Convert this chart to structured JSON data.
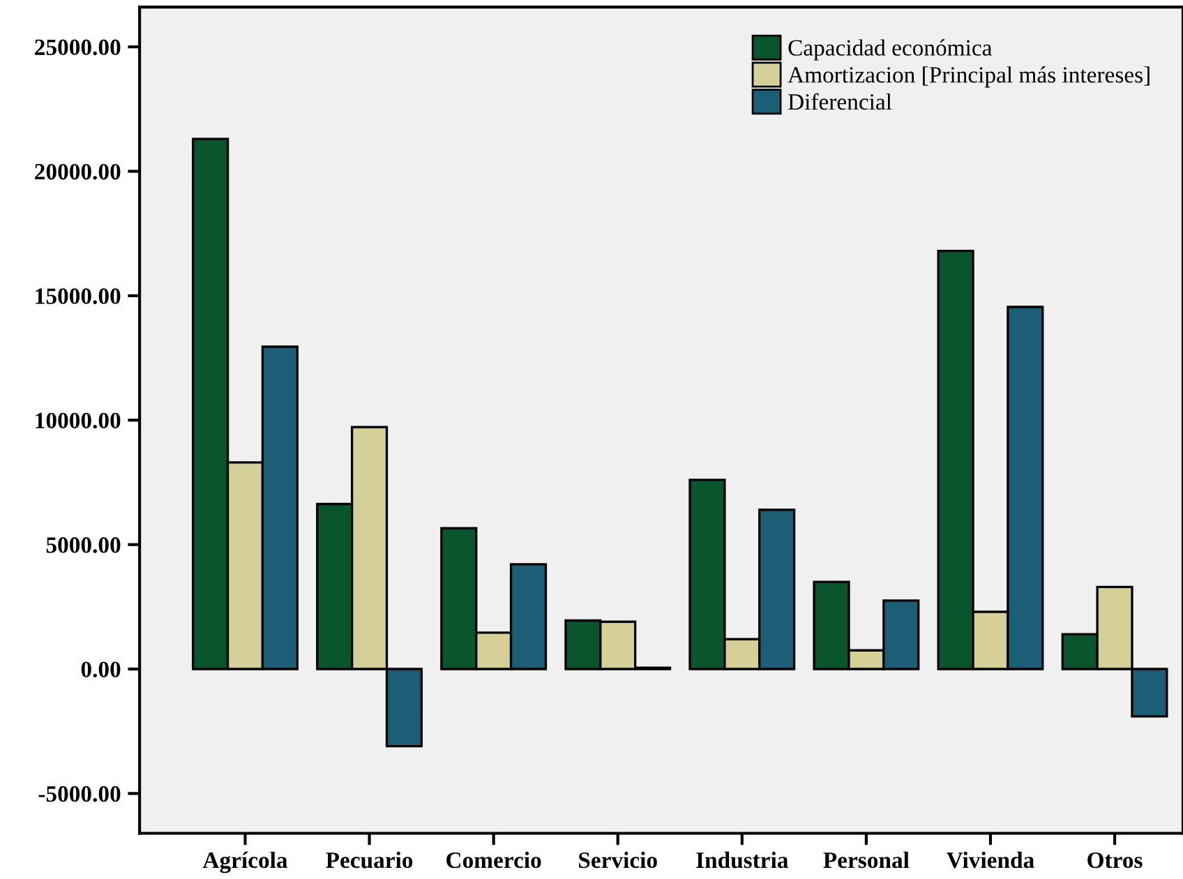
{
  "chart_data": {
    "type": "bar",
    "categories": [
      "Agrícola",
      "Pecuario",
      "Comercio",
      "Servicio",
      "Industria",
      "Personal",
      "Vivienda",
      "Otros"
    ],
    "series": [
      {
        "name": "Capacidad económica",
        "color": "#0a552d",
        "values": [
          21300,
          6630,
          5660,
          1950,
          7600,
          3500,
          16800,
          1400
        ]
      },
      {
        "name": "Amortizacion [Principal más intereses]",
        "color": "#d4d098",
        "values": [
          8300,
          9720,
          1460,
          1900,
          1200,
          750,
          2300,
          3300
        ]
      },
      {
        "name": "Diferencial",
        "color": "#1c5e75",
        "values": [
          12950,
          -3100,
          4210,
          50,
          6400,
          2750,
          14550,
          -1900
        ]
      }
    ],
    "ylim": [
      -6600,
      26600
    ],
    "yticks": [
      {
        "value": -5000,
        "label": "-5000.00"
      },
      {
        "value": 0,
        "label": "0.00"
      },
      {
        "value": 5000,
        "label": "5000.00"
      },
      {
        "value": 10000,
        "label": "10000.00"
      },
      {
        "value": 15000,
        "label": "15000.00"
      },
      {
        "value": 20000,
        "label": "20000.00"
      },
      {
        "value": 25000,
        "label": "25000.00"
      }
    ],
    "grid": false,
    "legend": "top right"
  }
}
